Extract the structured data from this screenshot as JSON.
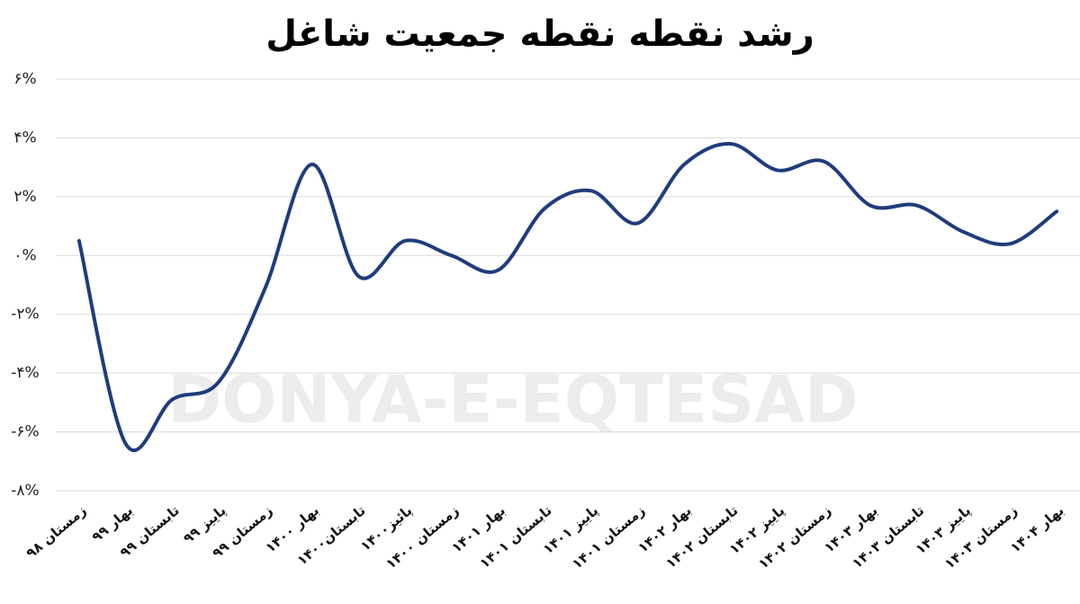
{
  "chart_data": {
    "type": "line",
    "title": "رشد نقطه نقطه جمعیت شاغل",
    "watermark": "DONYA-E-EQTESAD",
    "categories": [
      "زمستان ۹۸",
      "بهار ۹۹",
      "تابستان ۹۹",
      "پاییز ۹۹",
      "زمستان ۹۹",
      "بهار ۱۴۰۰",
      "تابستان۱۴۰۰",
      "پائیز۱۴۰۰",
      "زمستان ۱۴۰۰",
      "بهار ۱۴۰۱",
      "تابستان ۱۴۰۱",
      "پاییز ۱۴۰۱",
      "زمستان ۱۴۰۱",
      "بهار ۱۴۰۲",
      "تابستان ۱۴۰۲",
      "پاییز ۱۴۰۲",
      "زمستان ۱۴۰۲",
      "بهار ۱۴۰۳",
      "تابستان ۱۴۰۳",
      "پاییز ۱۴۰۳",
      "زمستان ۱۴۰۳",
      "بهار ۱۴۰۴"
    ],
    "values": [
      0.5,
      -6.4,
      -4.9,
      -4.3,
      -1.1,
      3.1,
      -0.7,
      0.5,
      0.0,
      -0.5,
      1.6,
      2.2,
      1.1,
      3.1,
      3.8,
      2.9,
      3.2,
      1.7,
      1.7,
      0.8,
      0.4,
      1.5
    ],
    "color": "#1f3c7c",
    "ylim": [
      -8,
      6
    ],
    "yticks": [
      {
        "value": -8,
        "label": "-۸%"
      },
      {
        "value": -6,
        "label": "-۶%"
      },
      {
        "value": -4,
        "label": "-۴%"
      },
      {
        "value": -2,
        "label": "-۲%"
      },
      {
        "value": 0,
        "label": "۰%"
      },
      {
        "value": 2,
        "label": "۲%"
      },
      {
        "value": 4,
        "label": "۴%"
      },
      {
        "value": 6,
        "label": "۶%"
      }
    ],
    "grid": true
  }
}
